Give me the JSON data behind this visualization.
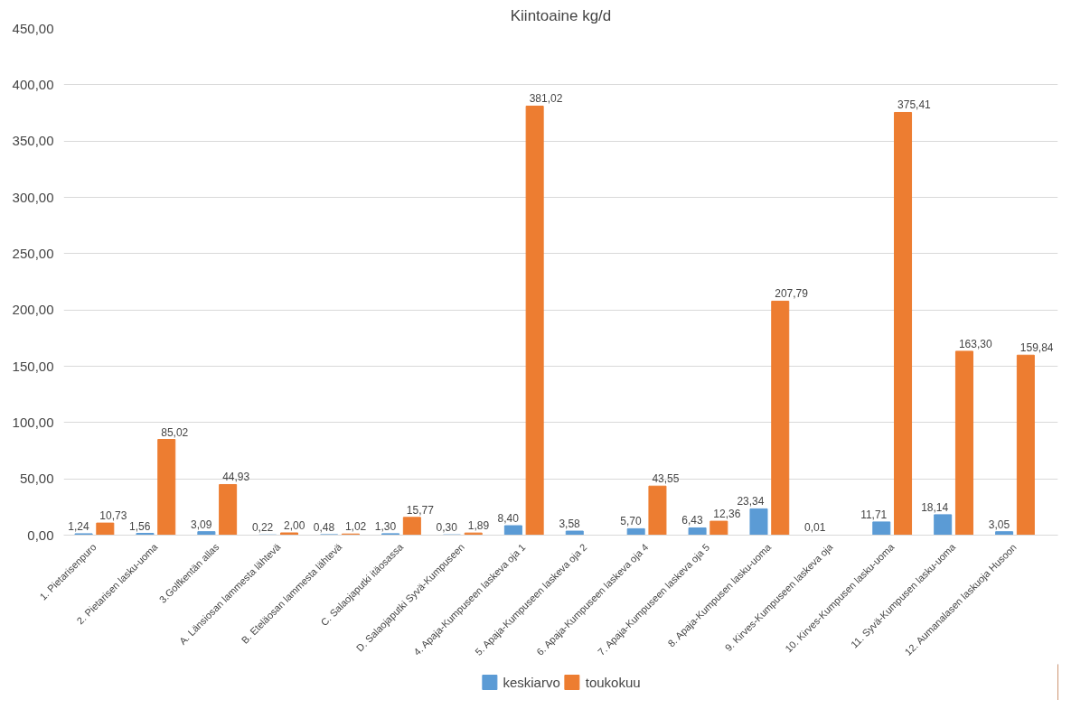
{
  "chart_data": {
    "type": "bar",
    "title": "Kiintoaine kg/d",
    "categories": [
      "1. Pietarisenpuro",
      "2. Pietarisen lasku-uoma",
      "3.Golfkentän allas",
      "A. Länsiosan lammesta lähtevä",
      "B. Eteläosan lammesta lähtevä",
      "C. Salaojaputki itäosassa",
      "D. Salaojaputki Syvä-Kumpuseen",
      "4. Apaja-Kumpuseen laskeva oja 1",
      "5. Apaja-Kumpuseen laskeva oja 2",
      "6. Apaja-Kumpuseen laskeva oja 4",
      "7. Apaja-Kumpuseen laskeva oja 5",
      "8. Apaja-Kumpusen lasku-uoma",
      "9. Kirves-Kumpuseen laskeva oja",
      "10. Kirves-Kumpusen lasku-uoma",
      "11. Syvä-Kumpusen lasku-uoma",
      "12. Aumanalasen laskuoja Husoon"
    ],
    "series": [
      {
        "name": "keskiarvo",
        "color": "#5b9bd5",
        "values": [
          1.24,
          1.56,
          3.09,
          0.22,
          0.48,
          1.3,
          0.3,
          8.4,
          3.58,
          5.7,
          6.43,
          23.34,
          0.01,
          11.71,
          18.14,
          3.05
        ],
        "value_labels": [
          "1,24",
          "1,56",
          "3,09",
          "0,22",
          "0,48",
          "1,30",
          "0,30",
          "8,40",
          "3,58",
          "5,70",
          "6,43",
          "23,34",
          "0,01",
          "11,71",
          "18,14",
          "3,05"
        ]
      },
      {
        "name": "toukokuu",
        "color": "#ed7d31",
        "values": [
          10.73,
          85.02,
          44.93,
          2.0,
          1.02,
          15.77,
          1.89,
          381.02,
          null,
          43.55,
          12.36,
          207.79,
          null,
          375.41,
          163.3,
          159.84
        ],
        "value_labels": [
          "10,73",
          "85,02",
          "44,93",
          "2,00",
          "1,02",
          "15,77",
          "1,89",
          "381,02",
          null,
          "43,55",
          "12,36",
          "207,79",
          null,
          "375,41",
          "163,30",
          "159,84"
        ]
      }
    ],
    "ylim": [
      0,
      450
    ],
    "yticks": [
      {
        "value": 0,
        "label": "0,00"
      },
      {
        "value": 50,
        "label": "50,00"
      },
      {
        "value": 100,
        "label": "100,00"
      },
      {
        "value": 150,
        "label": "150,00"
      },
      {
        "value": 200,
        "label": "200,00"
      },
      {
        "value": 250,
        "label": "250,00"
      },
      {
        "value": 300,
        "label": "300,00"
      },
      {
        "value": 350,
        "label": "350,00"
      },
      {
        "value": 400,
        "label": "400,00"
      },
      {
        "value": 450,
        "label": "450,00"
      }
    ],
    "grid": "y",
    "legend": "bottom"
  }
}
